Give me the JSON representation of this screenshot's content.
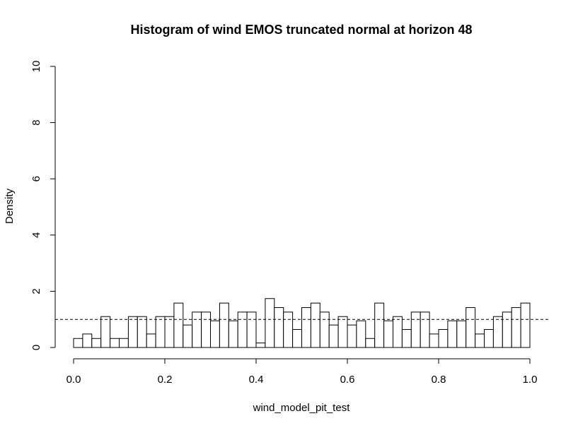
{
  "chart_data": {
    "type": "bar",
    "title": "Histogram of wind EMOS truncated normal at horizon 48",
    "xlabel": "wind_model_pit_test",
    "ylabel": "Density",
    "xlim": [
      0,
      1
    ],
    "ylim": [
      0,
      10
    ],
    "x_ticks": [
      "0.0",
      "0.2",
      "0.4",
      "0.6",
      "0.8",
      "1.0"
    ],
    "y_ticks": [
      "0",
      "2",
      "4",
      "6",
      "8",
      "10"
    ],
    "bin_width": 0.02,
    "bin_start": 0,
    "values": [
      0.32,
      0.48,
      0.32,
      1.1,
      0.32,
      0.32,
      1.1,
      1.1,
      0.48,
      1.1,
      1.1,
      1.58,
      0.8,
      1.26,
      1.26,
      0.95,
      1.58,
      0.95,
      1.26,
      1.26,
      0.16,
      1.74,
      1.42,
      1.26,
      0.64,
      1.42,
      1.58,
      1.26,
      0.8,
      1.1,
      0.8,
      0.95,
      0.32,
      1.58,
      0.95,
      1.1,
      0.64,
      1.26,
      1.26,
      0.48,
      0.64,
      0.95,
      0.95,
      1.42,
      0.48,
      0.64,
      1.1,
      1.26,
      1.42,
      1.58
    ],
    "reference_line": {
      "y": 1,
      "style": "dashed"
    },
    "grid": false
  }
}
